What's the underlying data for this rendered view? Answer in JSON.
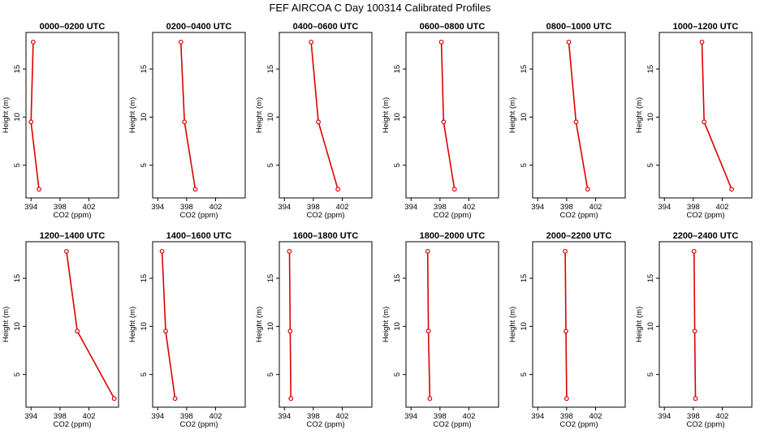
{
  "figure_title": "FEF AIRCOA C  Day 100314  Calibrated Profiles",
  "colors": {
    "profile": "#dd0000",
    "axis": "#000000",
    "background": "#ffffff"
  },
  "chart_data": [
    {
      "type": "line",
      "title": "0000–0200 UTC",
      "xlabel": "CO2 (ppm)",
      "ylabel": "Height (m)",
      "xlim": [
        393.3,
        406.1
      ],
      "ylim": [
        1.6,
        18.8
      ],
      "xticks": [
        394,
        398,
        402
      ],
      "yticks": [
        5,
        10,
        15
      ],
      "points": [
        {
          "x": 394.3,
          "y": 17.8
        },
        {
          "x": 394.0,
          "y": 9.5
        },
        {
          "x": 395.1,
          "y": 2.5
        }
      ]
    },
    {
      "type": "line",
      "title": "0200–0400 UTC",
      "xlabel": "CO2 (ppm)",
      "ylabel": "Height (m)",
      "xlim": [
        393.3,
        406.1
      ],
      "ylim": [
        1.6,
        18.8
      ],
      "xticks": [
        394,
        398,
        402
      ],
      "yticks": [
        5,
        10,
        15
      ],
      "points": [
        {
          "x": 397.2,
          "y": 17.8
        },
        {
          "x": 397.7,
          "y": 9.5
        },
        {
          "x": 399.2,
          "y": 2.5
        }
      ]
    },
    {
      "type": "line",
      "title": "0400–0600 UTC",
      "xlabel": "CO2 (ppm)",
      "ylabel": "Height (m)",
      "xlim": [
        393.3,
        406.1
      ],
      "ylim": [
        1.6,
        18.8
      ],
      "xticks": [
        394,
        398,
        402
      ],
      "yticks": [
        5,
        10,
        15
      ],
      "points": [
        {
          "x": 397.7,
          "y": 17.8
        },
        {
          "x": 398.7,
          "y": 9.5
        },
        {
          "x": 401.4,
          "y": 2.5
        }
      ]
    },
    {
      "type": "line",
      "title": "0600–0800 UTC",
      "xlabel": "CO2 (ppm)",
      "ylabel": "Height (m)",
      "xlim": [
        393.3,
        406.1
      ],
      "ylim": [
        1.6,
        18.8
      ],
      "xticks": [
        394,
        398,
        402
      ],
      "yticks": [
        5,
        10,
        15
      ],
      "points": [
        {
          "x": 398.2,
          "y": 17.8
        },
        {
          "x": 398.5,
          "y": 9.5
        },
        {
          "x": 400.0,
          "y": 2.5
        }
      ]
    },
    {
      "type": "line",
      "title": "0800–1000 UTC",
      "xlabel": "CO2 (ppm)",
      "ylabel": "Height (m)",
      "xlim": [
        393.3,
        406.1
      ],
      "ylim": [
        1.6,
        18.8
      ],
      "xticks": [
        394,
        398,
        402
      ],
      "yticks": [
        5,
        10,
        15
      ],
      "points": [
        {
          "x": 398.3,
          "y": 17.8
        },
        {
          "x": 399.3,
          "y": 9.5
        },
        {
          "x": 400.9,
          "y": 2.5
        }
      ]
    },
    {
      "type": "line",
      "title": "1000–1200 UTC",
      "xlabel": "CO2 (ppm)",
      "ylabel": "Height (m)",
      "xlim": [
        393.3,
        406.1
      ],
      "ylim": [
        1.6,
        18.8
      ],
      "xticks": [
        394,
        398,
        402
      ],
      "yticks": [
        5,
        10,
        15
      ],
      "points": [
        {
          "x": 399.2,
          "y": 17.8
        },
        {
          "x": 399.5,
          "y": 9.5
        },
        {
          "x": 403.3,
          "y": 2.5
        }
      ]
    },
    {
      "type": "line",
      "title": "1200–1400 UTC",
      "xlabel": "CO2 (ppm)",
      "ylabel": "Height (m)",
      "xlim": [
        393.3,
        406.1
      ],
      "ylim": [
        1.6,
        18.8
      ],
      "xticks": [
        394,
        398,
        402
      ],
      "yticks": [
        5,
        10,
        15
      ],
      "points": [
        {
          "x": 398.9,
          "y": 17.8
        },
        {
          "x": 400.4,
          "y": 9.5
        },
        {
          "x": 405.5,
          "y": 2.5
        }
      ]
    },
    {
      "type": "line",
      "title": "1400–1600 UTC",
      "xlabel": "CO2 (ppm)",
      "ylabel": "Height (m)",
      "xlim": [
        393.3,
        406.1
      ],
      "ylim": [
        1.6,
        18.8
      ],
      "xticks": [
        394,
        398,
        402
      ],
      "yticks": [
        5,
        10,
        15
      ],
      "points": [
        {
          "x": 394.6,
          "y": 17.8
        },
        {
          "x": 395.1,
          "y": 9.5
        },
        {
          "x": 396.4,
          "y": 2.5
        }
      ]
    },
    {
      "type": "line",
      "title": "1600–1800 UTC",
      "xlabel": "CO2 (ppm)",
      "ylabel": "Height (m)",
      "xlim": [
        393.3,
        406.1
      ],
      "ylim": [
        1.6,
        18.8
      ],
      "xticks": [
        394,
        398,
        402
      ],
      "yticks": [
        5,
        10,
        15
      ],
      "points": [
        {
          "x": 394.7,
          "y": 17.8
        },
        {
          "x": 394.8,
          "y": 9.5
        },
        {
          "x": 394.9,
          "y": 2.5
        }
      ]
    },
    {
      "type": "line",
      "title": "1800–2000 UTC",
      "xlabel": "CO2 (ppm)",
      "ylabel": "Height (m)",
      "xlim": [
        393.3,
        406.1
      ],
      "ylim": [
        1.6,
        18.8
      ],
      "xticks": [
        394,
        398,
        402
      ],
      "yticks": [
        5,
        10,
        15
      ],
      "points": [
        {
          "x": 396.3,
          "y": 17.8
        },
        {
          "x": 396.4,
          "y": 9.5
        },
        {
          "x": 396.6,
          "y": 2.5
        }
      ]
    },
    {
      "type": "line",
      "title": "2000–2200 UTC",
      "xlabel": "CO2 (ppm)",
      "ylabel": "Height (m)",
      "xlim": [
        393.3,
        406.1
      ],
      "ylim": [
        1.6,
        18.8
      ],
      "xticks": [
        394,
        398,
        402
      ],
      "yticks": [
        5,
        10,
        15
      ],
      "points": [
        {
          "x": 397.8,
          "y": 17.8
        },
        {
          "x": 397.9,
          "y": 9.5
        },
        {
          "x": 398.0,
          "y": 2.5
        }
      ]
    },
    {
      "type": "line",
      "title": "2200–2400 UTC",
      "xlabel": "CO2 (ppm)",
      "ylabel": "Height (m)",
      "xlim": [
        393.3,
        406.1
      ],
      "ylim": [
        1.6,
        18.8
      ],
      "xticks": [
        394,
        398,
        402
      ],
      "yticks": [
        5,
        10,
        15
      ],
      "points": [
        {
          "x": 398.1,
          "y": 17.8
        },
        {
          "x": 398.2,
          "y": 9.5
        },
        {
          "x": 398.3,
          "y": 2.5
        }
      ]
    }
  ]
}
